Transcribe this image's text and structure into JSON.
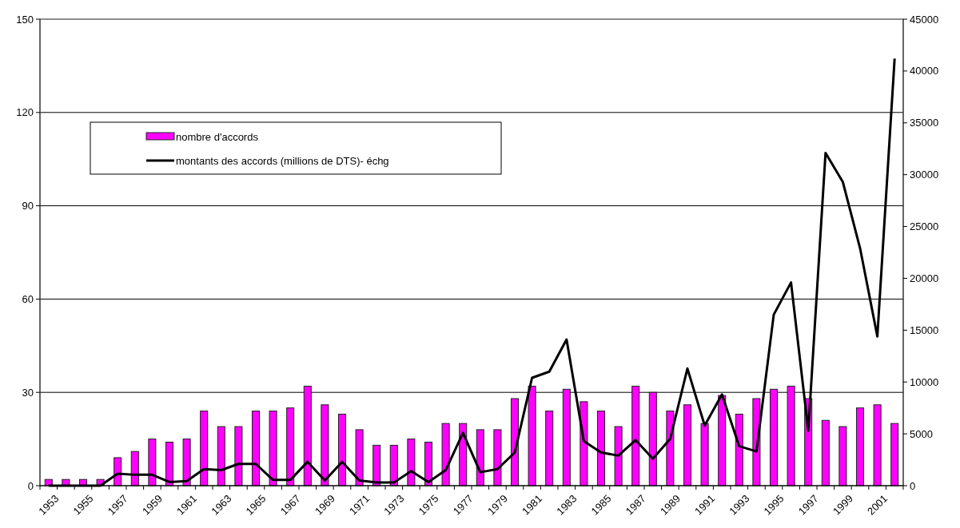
{
  "chart_data": {
    "type": "bar",
    "categories": [
      "1953",
      null,
      "1955",
      null,
      "1957",
      null,
      "1959",
      null,
      "1961",
      null,
      "1963",
      null,
      "1965",
      null,
      "1967",
      null,
      "1969",
      null,
      "1971",
      null,
      "1973",
      null,
      "1975",
      null,
      "1977",
      null,
      "1979",
      null,
      "1981",
      null,
      "1983",
      null,
      "1985",
      null,
      "1987",
      null,
      "1989",
      null,
      "1991",
      null,
      "1993",
      null,
      "1995",
      null,
      "1997",
      null,
      "1999",
      null,
      "2001",
      null
    ],
    "series": [
      {
        "name": "nombre d'accords",
        "color": "#ff00ff",
        "values": [
          2,
          2,
          2,
          2,
          9,
          11,
          15,
          14,
          15,
          24,
          19,
          19,
          24,
          24,
          25,
          32,
          26,
          23,
          18,
          13,
          13,
          15,
          14,
          20,
          20,
          18,
          18,
          28,
          32,
          24,
          31,
          27,
          24,
          19,
          32,
          30,
          24,
          26,
          20,
          29,
          23,
          28,
          31,
          32,
          28,
          21,
          19,
          25,
          26,
          20
        ]
      },
      {
        "name": "montants des accords (millions de DTS)- échg",
        "type": "line",
        "axis": "y2",
        "color": "#000000",
        "values": [
          0,
          0,
          0,
          0,
          1150,
          1050,
          1050,
          350,
          450,
          1600,
          1500,
          2100,
          2100,
          550,
          550,
          2300,
          500,
          2300,
          500,
          300,
          300,
          1400,
          350,
          1500,
          5100,
          1300,
          1600,
          3200,
          10400,
          11000,
          14100,
          4300,
          3200,
          2900,
          4400,
          2600,
          4500,
          11300,
          5800,
          8800,
          3800,
          3300,
          16500,
          19600,
          5300,
          32100,
          29300,
          22900,
          14400,
          41200
        ]
      }
    ],
    "ylim": [
      0,
      150
    ],
    "yticks": [
      0,
      30,
      60,
      90,
      120,
      150
    ],
    "y2lim": [
      0,
      45000
    ],
    "y2ticks": [
      0,
      5000,
      10000,
      15000,
      20000,
      25000,
      30000,
      35000,
      40000,
      45000
    ],
    "grid": "y",
    "legend": "top left",
    "line_style": "solid"
  }
}
